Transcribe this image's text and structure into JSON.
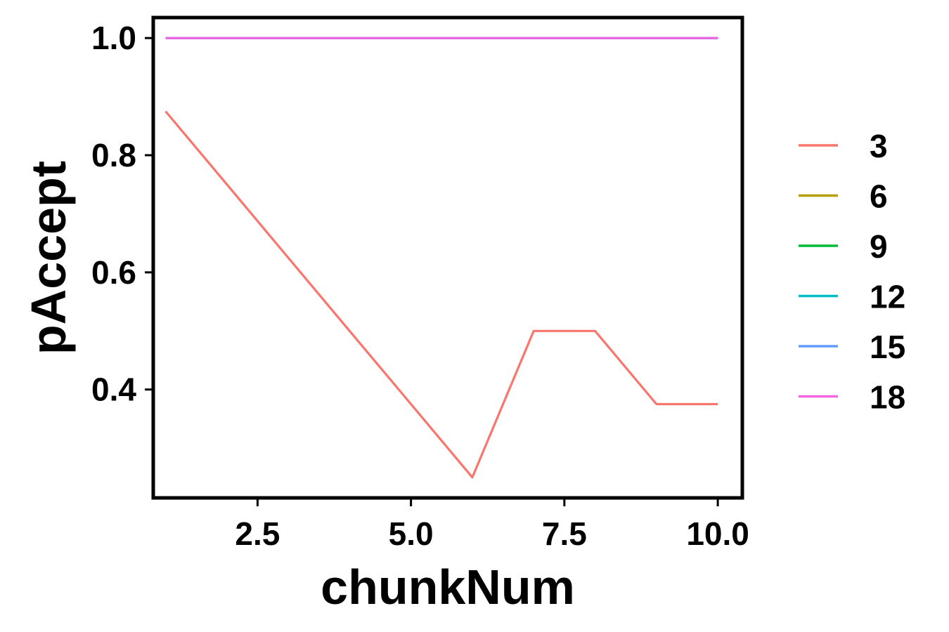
{
  "chart_data": {
    "type": "line",
    "title": "",
    "xlabel": "chunkNum",
    "ylabel": "pAccept",
    "xlim": [
      0.8,
      10.4
    ],
    "ylim": [
      0.215,
      1.035
    ],
    "x_ticks": [
      2.5,
      5.0,
      7.5,
      10.0
    ],
    "x_tick_labels": [
      "2.5",
      "5.0",
      "7.5",
      "10.0"
    ],
    "y_ticks": [
      0.4,
      0.6,
      0.8,
      1.0
    ],
    "y_tick_labels": [
      "0.4",
      "0.6",
      "0.8",
      "1.0"
    ],
    "grid": false,
    "legend_position": "right",
    "series": [
      {
        "name": "3",
        "color": "#F8766D",
        "x": [
          1,
          2,
          3,
          4,
          5,
          6,
          7,
          8,
          9,
          10
        ],
        "y": [
          0.875,
          0.75,
          0.625,
          0.5,
          0.375,
          0.25,
          0.5,
          0.5,
          0.375,
          0.375
        ]
      },
      {
        "name": "6",
        "color": "#B79F00",
        "x": [
          1,
          2,
          3,
          4,
          5,
          6,
          7,
          8,
          9,
          10
        ],
        "y": [
          1,
          1,
          1,
          1,
          1,
          1,
          1,
          1,
          1,
          1
        ]
      },
      {
        "name": "9",
        "color": "#00BA38",
        "x": [
          1,
          2,
          3,
          4,
          5,
          6,
          7,
          8,
          9,
          10
        ],
        "y": [
          1,
          1,
          1,
          1,
          1,
          1,
          1,
          1,
          1,
          1
        ]
      },
      {
        "name": "12",
        "color": "#00BFC4",
        "x": [
          1,
          2,
          3,
          4,
          5,
          6,
          7,
          8,
          9,
          10
        ],
        "y": [
          1,
          1,
          1,
          1,
          1,
          1,
          1,
          1,
          1,
          1
        ]
      },
      {
        "name": "15",
        "color": "#619CFF",
        "x": [
          1,
          2,
          3,
          4,
          5,
          6,
          7,
          8,
          9,
          10
        ],
        "y": [
          1,
          1,
          1,
          1,
          1,
          1,
          1,
          1,
          1,
          1
        ]
      },
      {
        "name": "18",
        "color": "#F564E3",
        "x": [
          1,
          2,
          3,
          4,
          5,
          6,
          7,
          8,
          9,
          10
        ],
        "y": [
          1,
          1,
          1,
          1,
          1,
          1,
          1,
          1,
          1,
          1
        ]
      }
    ]
  }
}
